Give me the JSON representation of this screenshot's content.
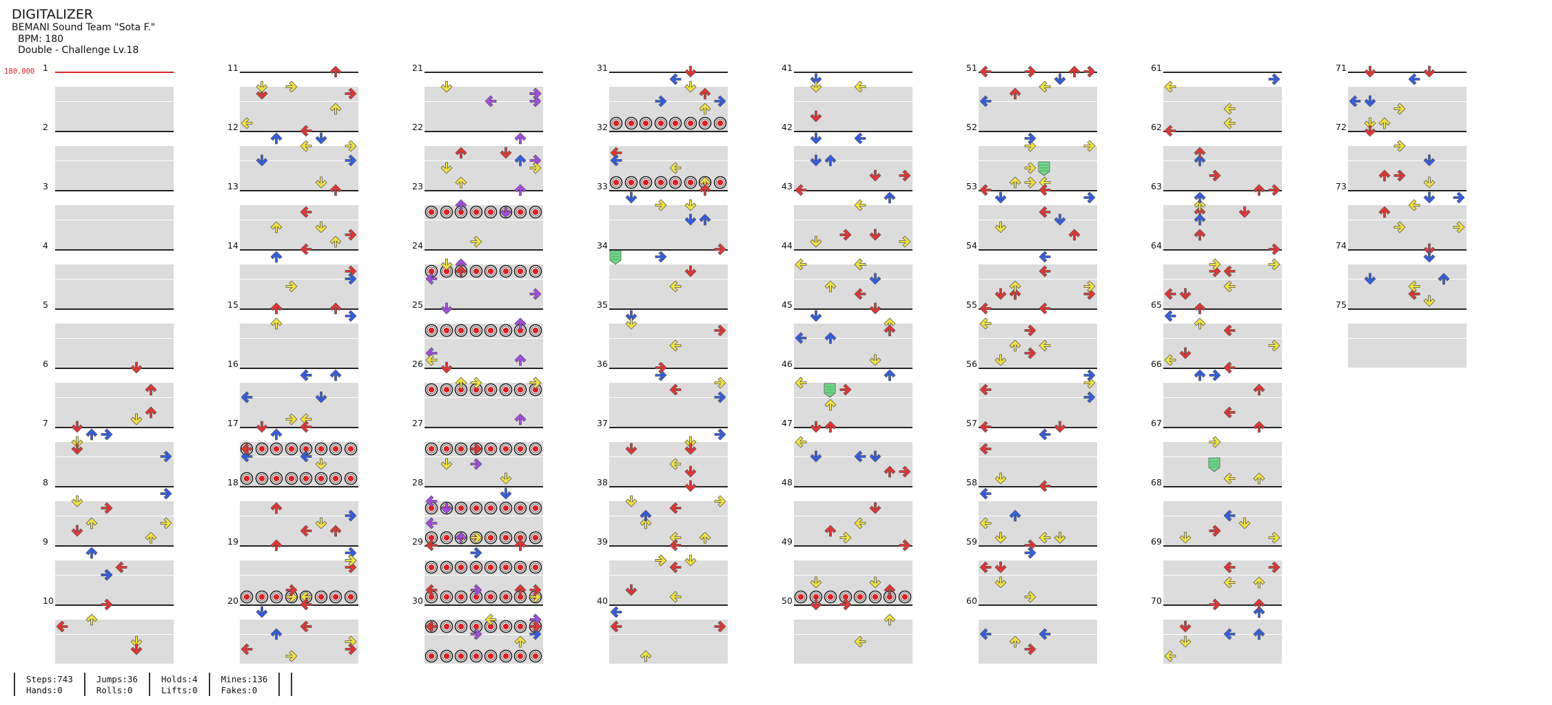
{
  "song": {
    "title": "DIGITALIZER",
    "artist": "BEMANI Sound Team \"Sota F.\"",
    "bpm_label": "BPM: 180",
    "chart_label": "Double - Challenge Lv.18",
    "bpm_marker": "180.000"
  },
  "measure_count": 75,
  "measures_per_column": 10,
  "stats": [
    {
      "top": "Steps:743",
      "bottom": "Hands:0"
    },
    {
      "top": "Jumps:36",
      "bottom": "Rolls:0"
    },
    {
      "top": "Holds:4",
      "bottom": "Lifts:0"
    },
    {
      "top": "Mines:136",
      "bottom": "Fakes:0"
    }
  ],
  "colors": {
    "quarter": "#e8332f",
    "eighth": "#2f5ee8",
    "sixteenth": "#f2e23a",
    "triplet": "#a64ae8",
    "hold": "#6ed887",
    "band": "#dcdcdc",
    "bpm": "#e02020"
  },
  "panel_directions": [
    "left",
    "down",
    "up",
    "right",
    "left",
    "down",
    "up",
    "right"
  ]
}
